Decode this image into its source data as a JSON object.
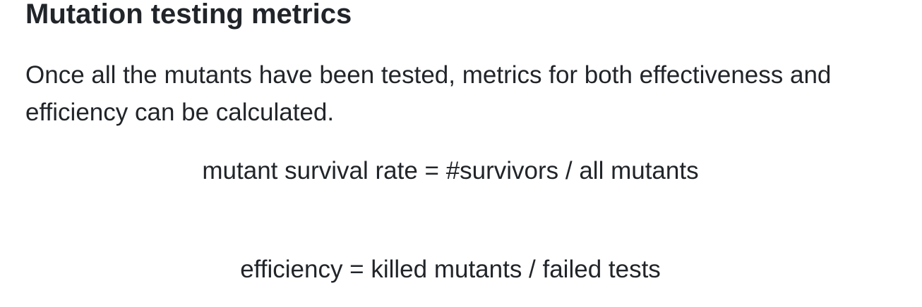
{
  "section": {
    "title": "Mutation testing metrics",
    "intro": "Once all the mutants have been tested, metrics for both effectiveness and efficiency can be calculated."
  },
  "formulas": [
    "mutant survival rate = #survivors / all mutants",
    "efficiency = killed mutants / failed tests"
  ]
}
